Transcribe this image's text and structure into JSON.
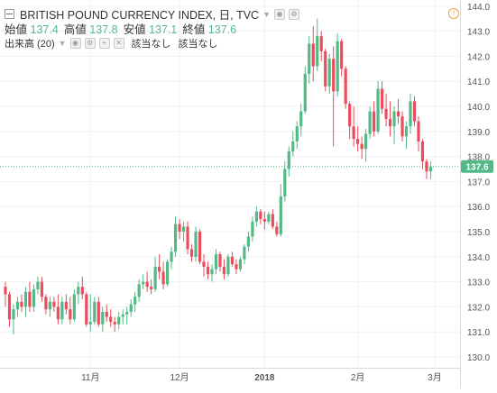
{
  "header": {
    "symbol_title": "BRITISH POUND CURRENCY INDEX, 日, TVC",
    "ohlc": [
      {
        "label": "始値",
        "value": "137.4"
      },
      {
        "label": "高値",
        "value": "137.8"
      },
      {
        "label": "安値",
        "value": "137.1"
      },
      {
        "label": "終値",
        "value": "137.6"
      }
    ],
    "volume_label": "出来高 (20)",
    "volume_values": [
      "該当なし",
      "該当なし"
    ]
  },
  "colors": {
    "up": "#53b987",
    "down": "#eb4d5c",
    "price_line": "#53b987",
    "grid": "#eef1f4"
  },
  "chart_data": {
    "type": "candlestick",
    "ylim": [
      129.7,
      144.1
    ],
    "yticks": [
      130.0,
      131.0,
      132.0,
      133.0,
      134.0,
      135.0,
      136.0,
      137.0,
      138.0,
      139.0,
      140.0,
      141.0,
      142.0,
      143.0,
      144.0
    ],
    "x_labels": [
      {
        "label": "11月",
        "index": 21
      },
      {
        "label": "12月",
        "index": 43
      },
      {
        "label": "2018",
        "index": 64
      },
      {
        "label": "2月",
        "index": 87
      },
      {
        "label": "3月",
        "index": 106
      }
    ],
    "last_price": 137.6,
    "last_price_label": "137.6",
    "ohlc": [
      [
        132.8,
        133.0,
        132.0,
        132.5
      ],
      [
        132.5,
        132.6,
        131.2,
        131.5
      ],
      [
        131.5,
        132.1,
        130.9,
        131.9
      ],
      [
        131.9,
        132.4,
        131.6,
        132.2
      ],
      [
        132.2,
        132.5,
        131.8,
        132.0
      ],
      [
        132.0,
        132.8,
        131.6,
        132.6
      ],
      [
        132.6,
        133.0,
        131.8,
        132.0
      ],
      [
        132.0,
        132.9,
        131.8,
        132.7
      ],
      [
        132.7,
        133.2,
        132.5,
        133.0
      ],
      [
        133.0,
        133.2,
        132.2,
        132.4
      ],
      [
        132.4,
        132.5,
        131.7,
        131.9
      ],
      [
        131.9,
        132.4,
        131.6,
        132.2
      ],
      [
        132.2,
        132.4,
        131.8,
        132.0
      ],
      [
        132.0,
        132.5,
        131.3,
        131.5
      ],
      [
        131.5,
        132.4,
        131.3,
        132.2
      ],
      [
        132.2,
        132.5,
        131.7,
        131.9
      ],
      [
        131.9,
        132.4,
        131.3,
        131.5
      ],
      [
        131.5,
        132.7,
        131.4,
        132.5
      ],
      [
        132.5,
        133.0,
        132.1,
        132.8
      ],
      [
        132.8,
        133.2,
        132.3,
        132.5
      ],
      [
        132.5,
        132.6,
        131.2,
        131.3
      ],
      [
        131.3,
        132.5,
        131.0,
        131.4
      ],
      [
        131.4,
        132.4,
        131.3,
        132.2
      ],
      [
        132.2,
        132.4,
        131.2,
        131.3
      ],
      [
        131.3,
        132.0,
        131.0,
        131.8
      ],
      [
        131.8,
        132.1,
        131.4,
        131.6
      ],
      [
        131.6,
        131.9,
        131.2,
        131.4
      ],
      [
        131.4,
        131.6,
        131.0,
        131.3
      ],
      [
        131.3,
        131.8,
        131.1,
        131.6
      ],
      [
        131.6,
        131.9,
        131.3,
        131.7
      ],
      [
        131.7,
        132.0,
        131.3,
        131.8
      ],
      [
        131.8,
        132.3,
        131.6,
        132.1
      ],
      [
        132.1,
        132.6,
        131.8,
        132.4
      ],
      [
        132.4,
        133.1,
        132.2,
        132.9
      ],
      [
        132.9,
        133.3,
        132.7,
        133.0
      ],
      [
        133.0,
        133.4,
        132.6,
        132.8
      ],
      [
        132.8,
        133.1,
        132.5,
        132.7
      ],
      [
        132.7,
        134.0,
        132.6,
        133.6
      ],
      [
        133.6,
        134.1,
        133.1,
        133.4
      ],
      [
        133.4,
        133.8,
        132.7,
        132.9
      ],
      [
        132.9,
        133.9,
        132.8,
        133.8
      ],
      [
        133.8,
        134.4,
        133.5,
        134.2
      ],
      [
        134.2,
        135.6,
        134.0,
        135.3
      ],
      [
        135.3,
        135.5,
        134.7,
        135.0
      ],
      [
        135.0,
        135.4,
        134.6,
        135.2
      ],
      [
        135.2,
        135.4,
        134.1,
        134.3
      ],
      [
        134.3,
        134.5,
        133.8,
        134.0
      ],
      [
        134.0,
        135.2,
        133.8,
        135.0
      ],
      [
        135.0,
        135.1,
        133.7,
        133.8
      ],
      [
        133.8,
        134.1,
        133.2,
        133.6
      ],
      [
        133.6,
        133.8,
        133.1,
        133.3
      ],
      [
        133.3,
        133.7,
        133.0,
        133.5
      ],
      [
        133.5,
        134.3,
        133.3,
        134.1
      ],
      [
        134.1,
        134.2,
        133.4,
        133.6
      ],
      [
        133.6,
        133.9,
        133.1,
        133.3
      ],
      [
        133.3,
        134.1,
        133.2,
        134.0
      ],
      [
        134.0,
        134.2,
        133.6,
        133.7
      ],
      [
        133.7,
        133.9,
        133.3,
        133.5
      ],
      [
        133.5,
        134.0,
        133.4,
        133.9
      ],
      [
        133.9,
        134.5,
        133.7,
        134.4
      ],
      [
        134.4,
        135.0,
        134.2,
        134.8
      ],
      [
        134.8,
        135.6,
        134.6,
        135.4
      ],
      [
        135.4,
        136.0,
        135.2,
        135.8
      ],
      [
        135.8,
        135.9,
        135.3,
        135.5
      ],
      [
        135.5,
        135.8,
        135.1,
        135.4
      ],
      [
        135.4,
        135.8,
        135.3,
        135.7
      ],
      [
        135.7,
        135.9,
        135.1,
        135.2
      ],
      [
        135.2,
        135.4,
        134.8,
        134.9
      ],
      [
        134.9,
        136.9,
        134.8,
        136.4
      ],
      [
        136.4,
        137.8,
        136.2,
        137.5
      ],
      [
        137.5,
        138.4,
        137.2,
        138.2
      ],
      [
        138.2,
        139.0,
        138.0,
        138.6
      ],
      [
        138.6,
        139.4,
        138.3,
        139.2
      ],
      [
        139.2,
        140.1,
        138.8,
        139.8
      ],
      [
        139.8,
        141.6,
        139.7,
        141.3
      ],
      [
        141.3,
        142.8,
        140.9,
        142.5
      ],
      [
        142.5,
        143.2,
        141.0,
        141.6
      ],
      [
        141.6,
        143.5,
        141.4,
        142.8
      ],
      [
        142.8,
        143.0,
        141.8,
        142.2
      ],
      [
        142.2,
        142.3,
        140.6,
        140.8
      ],
      [
        140.8,
        142.1,
        140.5,
        141.9
      ],
      [
        141.9,
        142.4,
        138.4,
        140.6
      ],
      [
        140.6,
        142.9,
        140.4,
        142.6
      ],
      [
        142.6,
        142.7,
        141.2,
        141.5
      ],
      [
        141.5,
        141.6,
        139.9,
        140.1
      ],
      [
        140.1,
        140.2,
        138.7,
        139.2
      ],
      [
        139.2,
        140.0,
        138.4,
        138.7
      ],
      [
        138.7,
        139.2,
        138.2,
        138.5
      ],
      [
        138.5,
        138.8,
        137.9,
        138.3
      ],
      [
        138.3,
        139.1,
        137.8,
        138.9
      ],
      [
        138.9,
        140.0,
        138.7,
        139.8
      ],
      [
        139.8,
        140.2,
        138.8,
        139.0
      ],
      [
        139.0,
        141.0,
        138.9,
        140.7
      ],
      [
        140.7,
        141.0,
        139.7,
        139.9
      ],
      [
        139.9,
        140.5,
        139.2,
        139.5
      ],
      [
        139.5,
        140.2,
        138.8,
        139.2
      ],
      [
        139.2,
        140.0,
        138.5,
        139.8
      ],
      [
        139.8,
        140.3,
        139.3,
        139.6
      ],
      [
        139.6,
        139.8,
        138.6,
        138.8
      ],
      [
        138.8,
        139.4,
        138.3,
        139.2
      ],
      [
        139.2,
        140.5,
        138.9,
        140.2
      ],
      [
        140.2,
        140.4,
        139.2,
        139.4
      ],
      [
        139.4,
        139.6,
        138.2,
        138.6
      ],
      [
        138.6,
        138.7,
        137.5,
        137.8
      ],
      [
        137.8,
        137.9,
        137.1,
        137.4
      ],
      [
        137.4,
        137.8,
        137.1,
        137.6
      ]
    ]
  }
}
